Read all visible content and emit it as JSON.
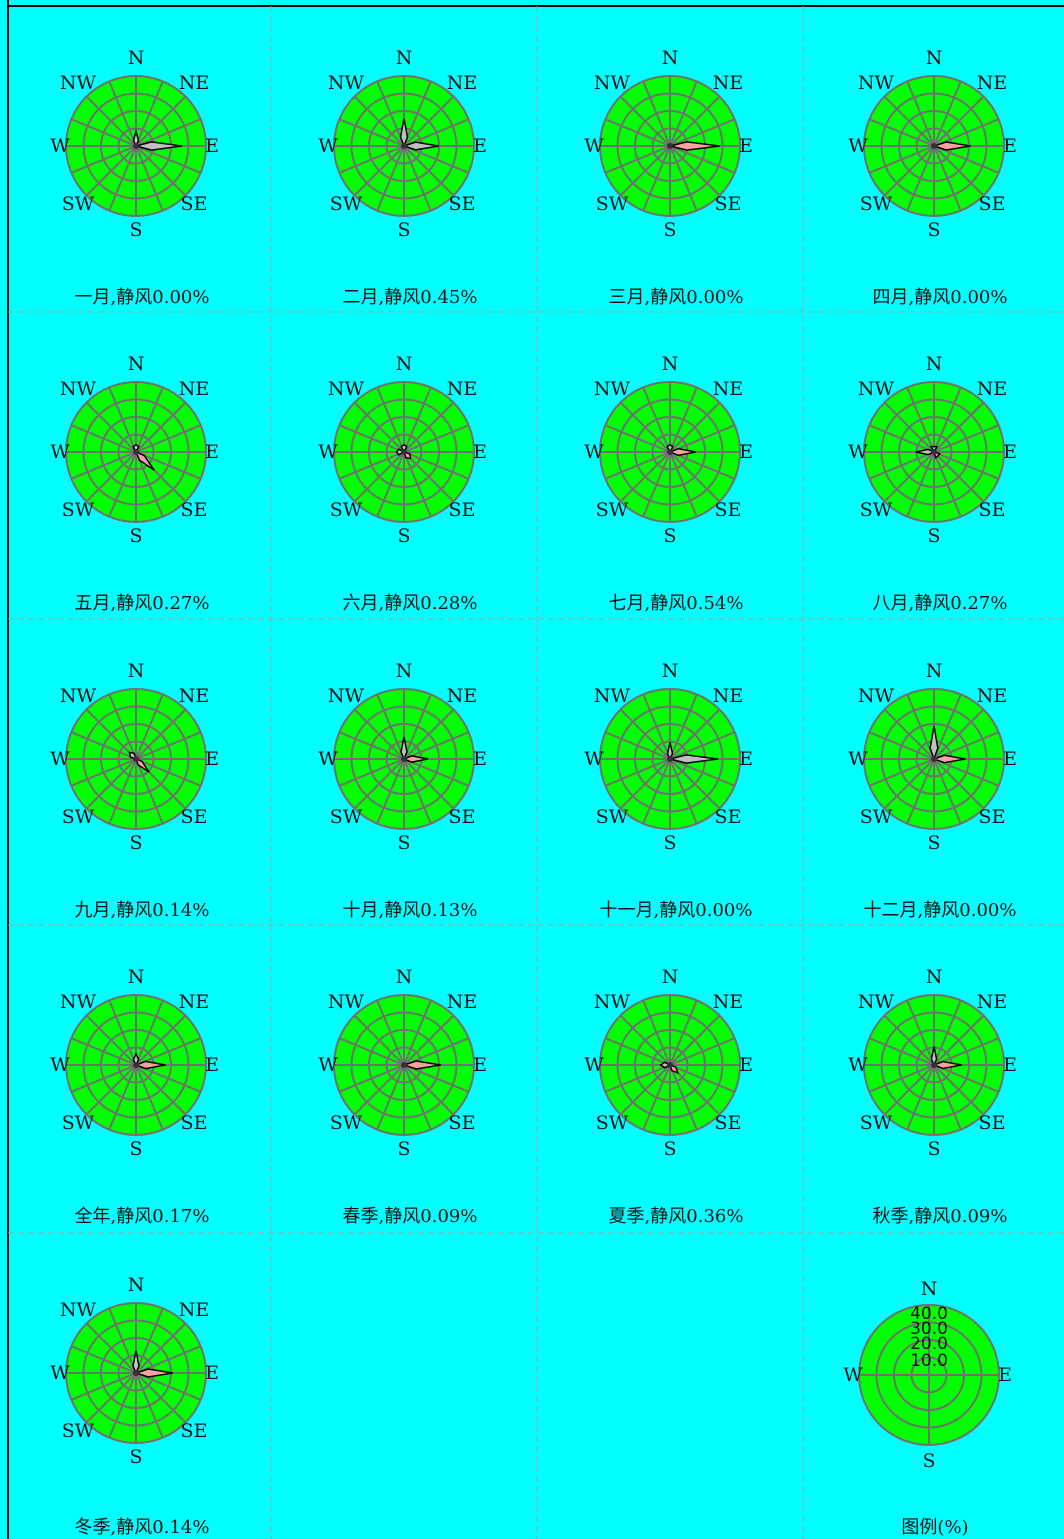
{
  "colors": {
    "background": "#00ffff",
    "disc_fill": "#00ff00",
    "grid_line": "#707070",
    "petal_gray": "#c0c0c0",
    "petal_pink": "#ffa0a0",
    "petal_outline": "#000000",
    "divider": "#a0a0a0"
  },
  "directions": [
    "N",
    "NE",
    "E",
    "SE",
    "S",
    "SW",
    "W",
    "NW"
  ],
  "chart_data": [
    {
      "type": "wind-rose",
      "caption": "一月,静风0.00%",
      "calm_percent": 0.0,
      "gray_lobes": [
        {
          "dir": "E",
          "percent": 25
        },
        {
          "dir": "N",
          "percent": 8
        }
      ],
      "pink_lobes": []
    },
    {
      "type": "wind-rose",
      "caption": "二月,静风0.45%",
      "calm_percent": 0.45,
      "gray_lobes": [
        {
          "dir": "E",
          "percent": 19
        },
        {
          "dir": "N",
          "percent": 15
        }
      ],
      "pink_lobes": []
    },
    {
      "type": "wind-rose",
      "caption": "三月,静风0.00%",
      "calm_percent": 0.0,
      "gray_lobes": [],
      "pink_lobes": [
        {
          "dir": "E",
          "percent": 27
        }
      ]
    },
    {
      "type": "wind-rose",
      "caption": "四月,静风0.00%",
      "calm_percent": 0.0,
      "gray_lobes": [],
      "pink_lobes": [
        {
          "dir": "E",
          "percent": 20
        }
      ]
    },
    {
      "type": "wind-rose",
      "caption": "五月,静风0.27%",
      "calm_percent": 0.27,
      "gray_lobes": [
        {
          "dir": "N",
          "percent": 4
        }
      ],
      "pink_lobes": [
        {
          "dir": "SE",
          "percent": 14
        }
      ]
    },
    {
      "type": "wind-rose",
      "caption": "六月,静风0.28%",
      "calm_percent": 0.28,
      "gray_lobes": [
        {
          "dir": "N",
          "percent": 4
        },
        {
          "dir": "W",
          "percent": 4
        }
      ],
      "pink_lobes": [
        {
          "dir": "SE",
          "percent": 5
        }
      ]
    },
    {
      "type": "wind-rose",
      "caption": "七月,静风0.54%",
      "calm_percent": 0.54,
      "gray_lobes": [
        {
          "dir": "N",
          "percent": 4
        }
      ],
      "pink_lobes": [
        {
          "dir": "E",
          "percent": 14
        }
      ]
    },
    {
      "type": "wind-rose",
      "caption": "八月,静风0.27%",
      "calm_percent": 0.27,
      "gray_lobes": [
        {
          "dir": "W",
          "percent": 10
        },
        {
          "dir": "N",
          "percent": 3
        }
      ],
      "pink_lobes": [
        {
          "dir": "SE",
          "percent": 3
        }
      ]
    },
    {
      "type": "wind-rose",
      "caption": "九月,静风0.14%",
      "calm_percent": 0.14,
      "gray_lobes": [
        {
          "dir": "NW",
          "percent": 5
        }
      ],
      "pink_lobes": [
        {
          "dir": "SE",
          "percent": 10
        }
      ]
    },
    {
      "type": "wind-rose",
      "caption": "十月,静风0.13%",
      "calm_percent": 0.13,
      "gray_lobes": [
        {
          "dir": "N",
          "percent": 12
        }
      ],
      "pink_lobes": [
        {
          "dir": "E",
          "percent": 13
        }
      ]
    },
    {
      "type": "wind-rose",
      "caption": "十一月,静风0.00%",
      "calm_percent": 0.0,
      "gray_lobes": [
        {
          "dir": "E",
          "percent": 26
        },
        {
          "dir": "N",
          "percent": 9
        }
      ],
      "pink_lobes": []
    },
    {
      "type": "wind-rose",
      "caption": "十二月,静风0.00%",
      "calm_percent": 0.0,
      "gray_lobes": [
        {
          "dir": "N",
          "percent": 18
        }
      ],
      "pink_lobes": [
        {
          "dir": "E",
          "percent": 17
        }
      ]
    },
    {
      "type": "wind-rose",
      "caption": "全年,静风0.17%",
      "calm_percent": 0.17,
      "gray_lobes": [
        {
          "dir": "N",
          "percent": 6
        }
      ],
      "pink_lobes": [
        {
          "dir": "E",
          "percent": 16
        }
      ]
    },
    {
      "type": "wind-rose",
      "caption": "春季,静风0.09%",
      "calm_percent": 0.09,
      "gray_lobes": [],
      "pink_lobes": [
        {
          "dir": "E",
          "percent": 20
        }
      ]
    },
    {
      "type": "wind-rose",
      "caption": "夏季,静风0.36%",
      "calm_percent": 0.36,
      "gray_lobes": [
        {
          "dir": "W",
          "percent": 5
        }
      ],
      "pink_lobes": [
        {
          "dir": "SE",
          "percent": 6
        }
      ]
    },
    {
      "type": "wind-rose",
      "caption": "秋季,静风0.09%",
      "calm_percent": 0.09,
      "gray_lobes": [
        {
          "dir": "N",
          "percent": 10
        }
      ],
      "pink_lobes": [
        {
          "dir": "E",
          "percent": 15
        }
      ]
    },
    {
      "type": "wind-rose",
      "caption": "冬季,静风0.14%",
      "calm_percent": 0.14,
      "gray_lobes": [
        {
          "dir": "N",
          "percent": 12
        }
      ],
      "pink_lobes": [
        {
          "dir": "E",
          "percent": 20
        }
      ]
    }
  ],
  "legend": {
    "caption": "图例(%)",
    "ring_values": [
      "10.0",
      "20.0",
      "30.0",
      "40.0"
    ],
    "directions": [
      "N",
      "E",
      "S",
      "W"
    ]
  }
}
